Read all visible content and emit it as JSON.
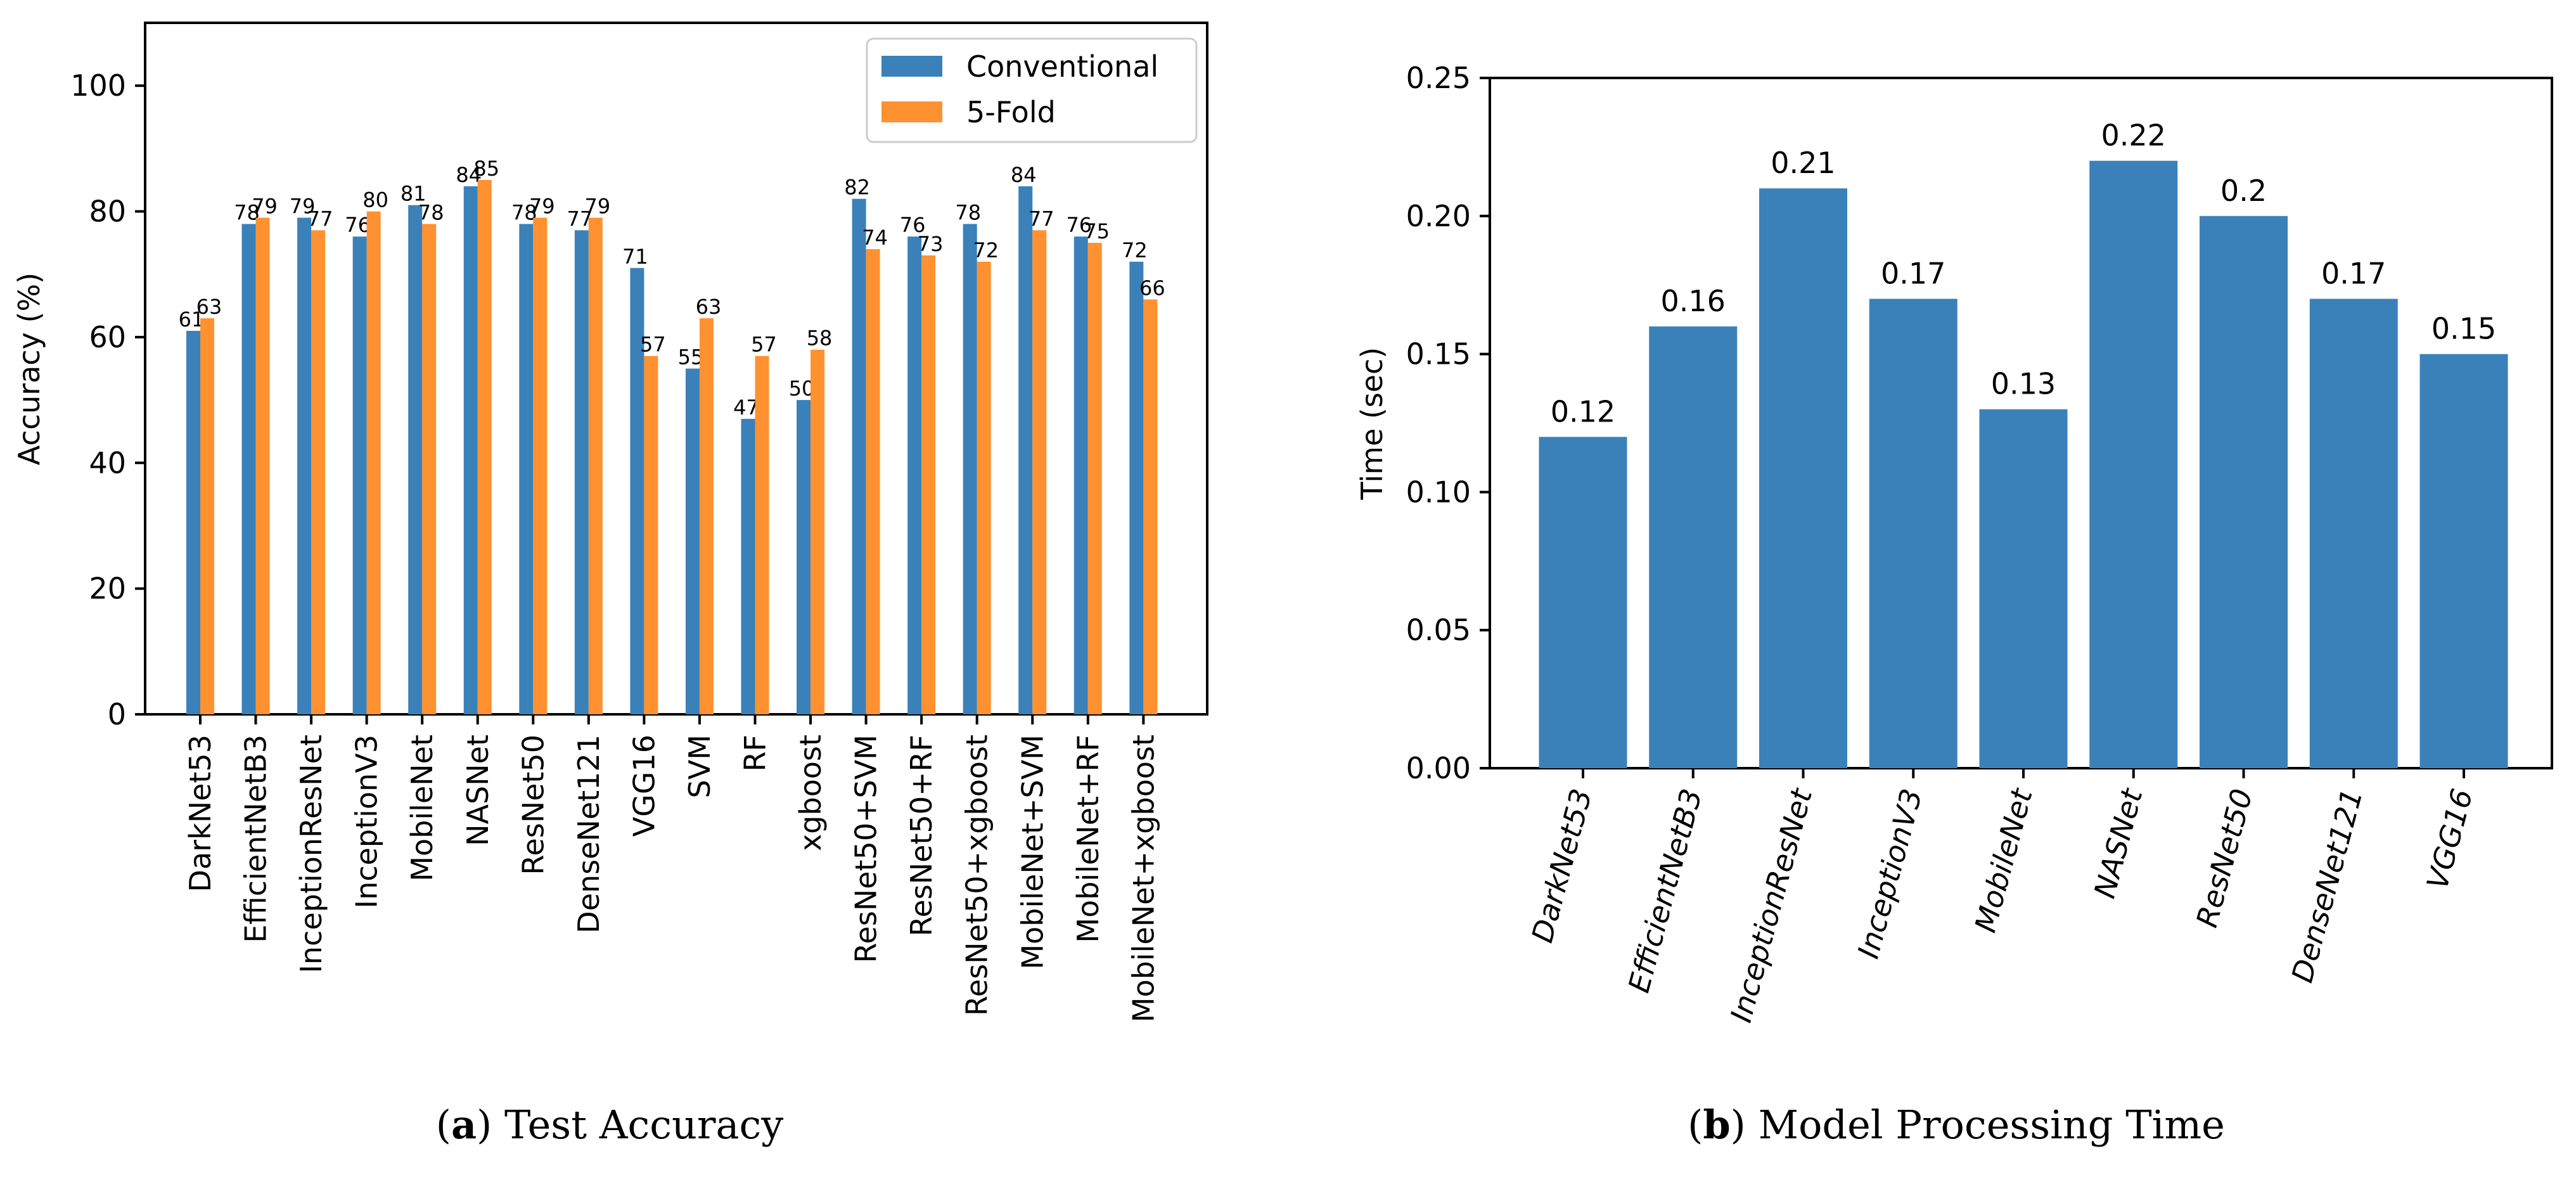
{
  "colors": {
    "conventional": "#3A81BA",
    "five_fold": "#FF9130",
    "processing_time": "#3A81BA"
  },
  "chart_data": [
    {
      "type": "bar",
      "caption_label": "a",
      "caption_text": " Test Accuracy",
      "ylabel": "Accuracy (%)",
      "ylim": [
        0,
        110
      ],
      "yticks": [
        0,
        20,
        40,
        60,
        80,
        100
      ],
      "grid": false,
      "legend_position": "top-right",
      "categories": [
        "DarkNet53",
        "EfficientNetB3",
        "InceptionResNet",
        "InceptionV3",
        "MobileNet",
        "NASNet",
        "ResNet50",
        "DenseNet121",
        "VGG16",
        "SVM",
        "RF",
        "xgboost",
        "ResNet50+SVM",
        "ResNet50+RF",
        "ResNet50+xgboost",
        "MobileNet+SVM",
        "MobileNet+RF",
        "MobileNet+xgboost"
      ],
      "series": [
        {
          "name": "Conventional",
          "values": [
            61,
            78,
            79,
            76,
            81,
            84,
            78,
            77,
            71,
            55,
            47,
            50,
            82,
            76,
            78,
            84,
            76,
            72
          ]
        },
        {
          "name": "5-Fold",
          "values": [
            63,
            79,
            77,
            80,
            78,
            85,
            79,
            79,
            57,
            63,
            57,
            58,
            74,
            73,
            72,
            77,
            75,
            66
          ]
        }
      ]
    },
    {
      "type": "bar",
      "caption_label": "b",
      "caption_text": " Model Processing Time",
      "ylabel": "Time (sec)",
      "ylim": [
        0,
        0.25
      ],
      "yticks": [
        "0.00",
        "0.05",
        "0.10",
        "0.15",
        "0.20",
        "0.25"
      ],
      "grid": false,
      "categories": [
        "DarkNet53",
        "EfficientNetB3",
        "InceptionResNet",
        "InceptionV3",
        "MobileNet",
        "NASNet",
        "ResNet50",
        "DenseNet121",
        "VGG16"
      ],
      "values": [
        0.12,
        0.16,
        0.21,
        0.17,
        0.13,
        0.22,
        0.2,
        0.17,
        0.15
      ]
    }
  ]
}
